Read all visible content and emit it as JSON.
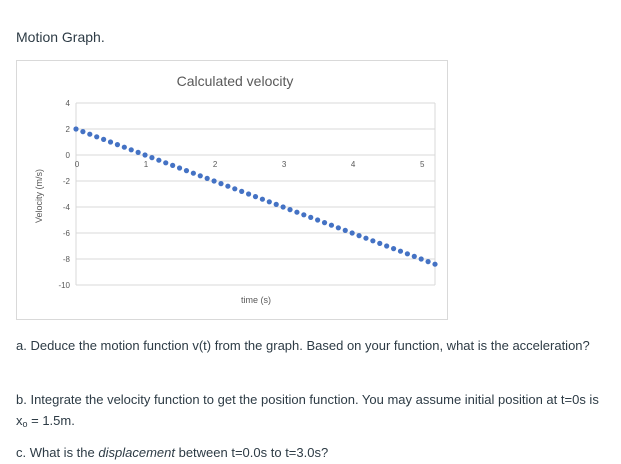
{
  "page": {
    "heading": "Motion Graph."
  },
  "questions": {
    "a": "a. Deduce the motion function v(t) from the graph. Based on your function, what is the acceleration?",
    "b_prefix": "b. Integrate the velocity function to get the position function. You may assume initial position at t=0s is x",
    "b_sub": "o",
    "b_suffix": " = 1.5m.",
    "c_prefix": "c. What is the ",
    "c_emph": "displacement",
    "c_suffix": " between t=0.0s to t=3.0s?"
  },
  "colors": {
    "marker": "#4472c4",
    "grid": "#d9d9d9",
    "text": "#595959"
  },
  "chart_data": {
    "type": "scatter",
    "title": "Calculated velocity",
    "xlabel": "time (s)",
    "ylabel": "Velocity (m/s)",
    "xlim": [
      0,
      5.2
    ],
    "ylim": [
      -10,
      4
    ],
    "x_ticks": [
      0,
      1,
      2,
      3,
      4,
      5
    ],
    "x_tick_labels": [
      "0",
      "1",
      "2",
      "3",
      "4",
      "5"
    ],
    "y_ticks": [
      4,
      2,
      0,
      -2,
      -4,
      -6,
      -8,
      -10
    ],
    "y_tick_labels": [
      "4",
      "2",
      "0",
      "-2",
      "-4",
      "-6",
      "-8",
      "-10"
    ],
    "gridlines": true,
    "series": [
      {
        "x": [
          0.0,
          0.1,
          0.2,
          0.3,
          0.4,
          0.5,
          0.6,
          0.7,
          0.8,
          0.9,
          1.0,
          1.1,
          1.2,
          1.3,
          1.4,
          1.5,
          1.6,
          1.7,
          1.8,
          1.9,
          2.0,
          2.1,
          2.2,
          2.3,
          2.4,
          2.5,
          2.6,
          2.7,
          2.8,
          2.9,
          3.0,
          3.1,
          3.2,
          3.3,
          3.4,
          3.5,
          3.6,
          3.7,
          3.8,
          3.9,
          4.0,
          4.1,
          4.2,
          4.3,
          4.4,
          4.5,
          4.6,
          4.7,
          4.8,
          4.9,
          5.0,
          5.1,
          5.2
        ],
        "y": [
          2.0,
          1.8,
          1.6,
          1.4,
          1.2,
          1.0,
          0.8,
          0.6,
          0.4,
          0.2,
          0.0,
          -0.2,
          -0.4,
          -0.6,
          -0.8,
          -1.0,
          -1.2,
          -1.4,
          -1.6,
          -1.8,
          -2.0,
          -2.2,
          -2.4,
          -2.6,
          -2.8,
          -3.0,
          -3.2,
          -3.4,
          -3.6,
          -3.8,
          -4.0,
          -4.2,
          -4.4,
          -4.6,
          -4.8,
          -5.0,
          -5.2,
          -5.4,
          -5.6,
          -5.8,
          -6.0,
          -6.2,
          -6.4,
          -6.6,
          -6.8,
          -7.0,
          -7.2,
          -7.4,
          -7.6,
          -7.8,
          -8.0,
          -8.2,
          -8.4
        ]
      }
    ]
  }
}
